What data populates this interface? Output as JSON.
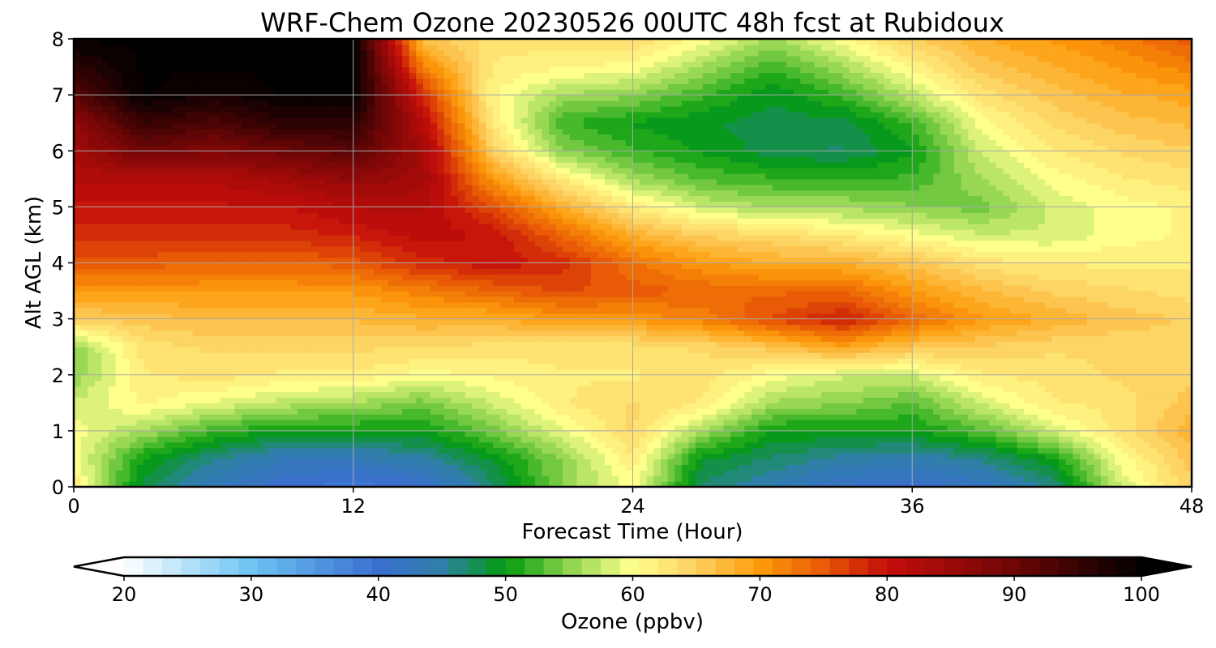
{
  "chart_data": {
    "type": "heatmap",
    "title": "WRF-Chem Ozone  20230526 00UTC 48h fcst at Rubidoux",
    "xlabel": "Forecast Time (Hour)",
    "ylabel": "Alt AGL (km)",
    "xlim": [
      0,
      48
    ],
    "ylim": [
      0,
      8
    ],
    "xticks": [
      "0",
      "12",
      "24",
      "36",
      "48"
    ],
    "yticks": [
      "0",
      "1",
      "2",
      "3",
      "4",
      "5",
      "6",
      "7",
      "8"
    ],
    "grid": true,
    "x": [
      0,
      3,
      6,
      9,
      12,
      15,
      18,
      21,
      24,
      27,
      30,
      33,
      36,
      39,
      42,
      45,
      48
    ],
    "y": [
      0,
      0.5,
      1,
      1.5,
      2,
      2.5,
      3,
      3.5,
      4,
      4.5,
      5,
      5.5,
      6,
      6.5,
      7,
      7.5,
      8
    ],
    "values": [
      [
        62,
        48,
        43,
        40,
        39,
        40,
        47,
        55,
        60,
        47,
        44,
        41,
        40,
        42,
        46,
        58,
        65
      ],
      [
        60,
        50,
        46,
        43,
        43,
        45,
        49,
        55,
        62,
        49,
        47,
        45,
        44,
        46,
        50,
        60,
        66
      ],
      [
        60,
        56,
        52,
        50,
        50,
        50,
        54,
        59,
        64,
        56,
        50,
        50,
        50,
        53,
        58,
        63,
        68
      ],
      [
        58,
        61,
        59,
        57,
        56,
        54,
        58,
        62,
        64,
        62,
        56,
        55,
        53,
        58,
        62,
        63,
        66
      ],
      [
        55,
        62,
        63,
        62,
        62,
        60,
        61,
        62,
        62,
        63,
        60,
        58,
        58,
        62,
        63,
        64,
        65
      ],
      [
        55,
        63,
        64,
        64,
        64,
        64,
        63,
        63,
        63,
        64,
        66,
        69,
        66,
        65,
        64,
        64,
        65
      ],
      [
        65,
        66,
        67,
        67,
        67,
        68,
        68,
        70,
        70,
        72,
        76,
        79,
        74,
        70,
        68,
        66,
        65
      ],
      [
        70,
        70,
        70,
        70,
        70,
        72,
        74,
        76,
        75,
        74,
        74,
        74,
        70,
        67,
        65,
        64,
        63
      ],
      [
        75,
        75,
        74,
        74,
        75,
        78,
        80,
        78,
        73,
        70,
        68,
        68,
        66,
        63,
        62,
        62,
        62
      ],
      [
        78,
        78,
        78,
        78,
        79,
        81,
        80,
        74,
        68,
        65,
        64,
        62,
        60,
        58,
        58,
        60,
        61
      ],
      [
        80,
        80,
        80,
        80,
        82,
        82,
        76,
        68,
        62,
        58,
        56,
        56,
        55,
        54,
        58,
        60,
        61
      ],
      [
        82,
        82,
        82,
        84,
        86,
        84,
        70,
        62,
        56,
        53,
        52,
        52,
        52,
        56,
        60,
        62,
        63
      ],
      [
        84,
        90,
        88,
        90,
        92,
        84,
        65,
        55,
        52,
        50,
        48,
        47,
        50,
        58,
        62,
        64,
        65
      ],
      [
        86,
        95,
        93,
        96,
        96,
        82,
        62,
        52,
        50,
        49,
        48,
        48,
        52,
        60,
        64,
        66,
        67
      ],
      [
        92,
        100,
        98,
        100,
        100,
        78,
        61,
        56,
        55,
        52,
        49,
        52,
        57,
        63,
        66,
        68,
        69
      ],
      [
        96,
        100,
        100,
        100,
        100,
        72,
        62,
        61,
        60,
        56,
        52,
        56,
        61,
        66,
        68,
        70,
        72
      ],
      [
        100,
        100,
        100,
        100,
        100,
        66,
        63,
        63,
        64,
        60,
        56,
        60,
        65,
        68,
        70,
        72,
        75
      ]
    ],
    "colorbar": {
      "label": "Ozone  (ppbv)",
      "min": 20,
      "max": 100,
      "extend": "both",
      "ticks": [
        "20",
        "30",
        "40",
        "50",
        "60",
        "70",
        "80",
        "90",
        "100"
      ],
      "colors": [
        {
          "v": 20,
          "c": "#ffffff"
        },
        {
          "v": 30,
          "c": "#6cc3f3"
        },
        {
          "v": 40,
          "c": "#3a6fd0"
        },
        {
          "v": 45,
          "c": "#2f7fa8"
        },
        {
          "v": 50,
          "c": "#029c0c"
        },
        {
          "v": 55,
          "c": "#8ed44e"
        },
        {
          "v": 60,
          "c": "#ffff8c"
        },
        {
          "v": 65,
          "c": "#fdd060"
        },
        {
          "v": 70,
          "c": "#fd9a0a"
        },
        {
          "v": 75,
          "c": "#e85a06"
        },
        {
          "v": 80,
          "c": "#c40e0a"
        },
        {
          "v": 90,
          "c": "#6e0606"
        },
        {
          "v": 100,
          "c": "#000000"
        }
      ]
    }
  }
}
